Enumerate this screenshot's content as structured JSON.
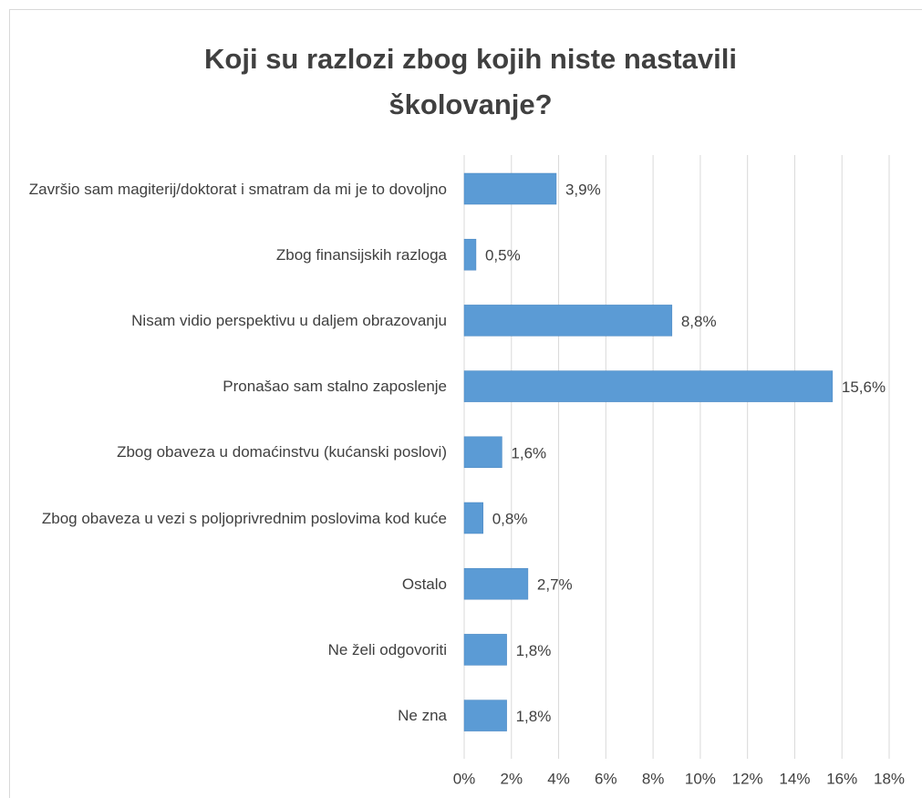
{
  "chart_data": {
    "type": "bar",
    "orientation": "horizontal",
    "title": "Koji su razlozi zbog kojih niste nastavili školovanje?",
    "categories": [
      "Završio sam magiterij/doktorat i smatram da mi je to dovoljno",
      "Zbog finansijskih razloga",
      "Nisam vidio perspektivu u daljem obrazovanju",
      "Pronašao sam stalno zaposlenje",
      "Zbog obaveza u domaćinstvu (kućanski poslovi)",
      "Zbog obaveza u vezi s poljoprivrednim poslovima kod kuće",
      "Ostalo",
      "Ne želi odgovoriti",
      "Ne zna"
    ],
    "values": [
      3.9,
      0.5,
      8.8,
      15.6,
      1.6,
      0.8,
      2.7,
      1.8,
      1.8
    ],
    "value_labels": [
      "3,9%",
      "0,5%",
      "8,8%",
      "15,6%",
      "1,6%",
      "0,8%",
      "2,7%",
      "1,8%",
      "1,8%"
    ],
    "color": "#5b9bd5",
    "xlim": [
      0,
      18
    ],
    "xticks": [
      {
        "value": 0,
        "label": "0%"
      },
      {
        "value": 2,
        "label": "2%"
      },
      {
        "value": 4,
        "label": "4%"
      },
      {
        "value": 6,
        "label": "6%"
      },
      {
        "value": 8,
        "label": "8%"
      },
      {
        "value": 10,
        "label": "10%"
      },
      {
        "value": 12,
        "label": "12%"
      },
      {
        "value": 14,
        "label": "14%"
      },
      {
        "value": 16,
        "label": "16%"
      },
      {
        "value": 18,
        "label": "18%"
      }
    ],
    "grid": true
  }
}
